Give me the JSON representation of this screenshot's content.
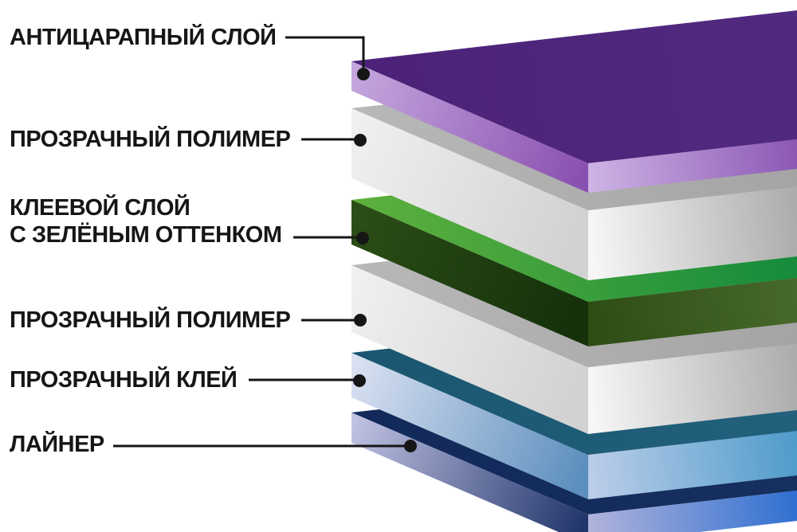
{
  "diagram": {
    "background": "#ffffff",
    "leader_color": "#161616",
    "label_color": "#161616",
    "layers": [
      {
        "id": "anti-scratch-layer",
        "label_lines": [
          "АНТИЦАРАПНЫЙ СЛОЙ"
        ],
        "faces": {
          "top": [
            "#4B2278",
            "#512A80"
          ],
          "left": [
            "#C6A9DE",
            "#8A50B1"
          ],
          "right": [
            "#CDB4E4",
            "#8C57B4"
          ]
        }
      },
      {
        "id": "clear-polymer-top",
        "label_lines": [
          "ПРОЗРАЧНЫЙ ПОЛИМЕР"
        ],
        "faces": {
          "top": [
            "#B8B8B8",
            "#A4A4A4"
          ],
          "left": [
            "#F1F1F1",
            "#D2D2D2"
          ],
          "right": [
            "#F6F6F6",
            "#ABABAB"
          ]
        }
      },
      {
        "id": "adhesive-green-tint",
        "label_lines": [
          "КЛЕЕВОЙ СЛОЙ",
          "С ЗЕЛЁНЫМ ОТТЕНКОМ"
        ],
        "faces": {
          "top": [
            "#5FB13C",
            "#138A3C"
          ],
          "left": [
            "#2C4E16",
            "#15300B"
          ],
          "right": [
            "#2E4D15",
            "#47692A"
          ]
        }
      },
      {
        "id": "clear-polymer-bottom",
        "label_lines": [
          "ПРОЗРАЧНЫЙ ПОЛИМЕР"
        ],
        "faces": {
          "top": [
            "#B8B8B8",
            "#A4A4A4"
          ],
          "left": [
            "#F1F1F1",
            "#D2D2D2"
          ],
          "right": [
            "#F6F6F6",
            "#ABABAB"
          ]
        }
      },
      {
        "id": "clear-adhesive",
        "label_lines": [
          "ПРОЗРАЧНЫЙ КЛЕЙ"
        ],
        "faces": {
          "top": [
            "#1B5671",
            "#22617C"
          ],
          "left": [
            "#DDE3F3",
            "#5E90BE"
          ],
          "right": [
            "#BBCDE9",
            "#4E9BCA"
          ]
        }
      },
      {
        "id": "liner",
        "label_lines": [
          "ЛАЙНЕР"
        ],
        "faces": {
          "top": [
            "#12295A",
            "#16305F"
          ],
          "left": [
            "#C3C5E5",
            "#22366B"
          ],
          "right": [
            "#B0B3DB",
            "#2E6FD1"
          ]
        }
      }
    ]
  }
}
